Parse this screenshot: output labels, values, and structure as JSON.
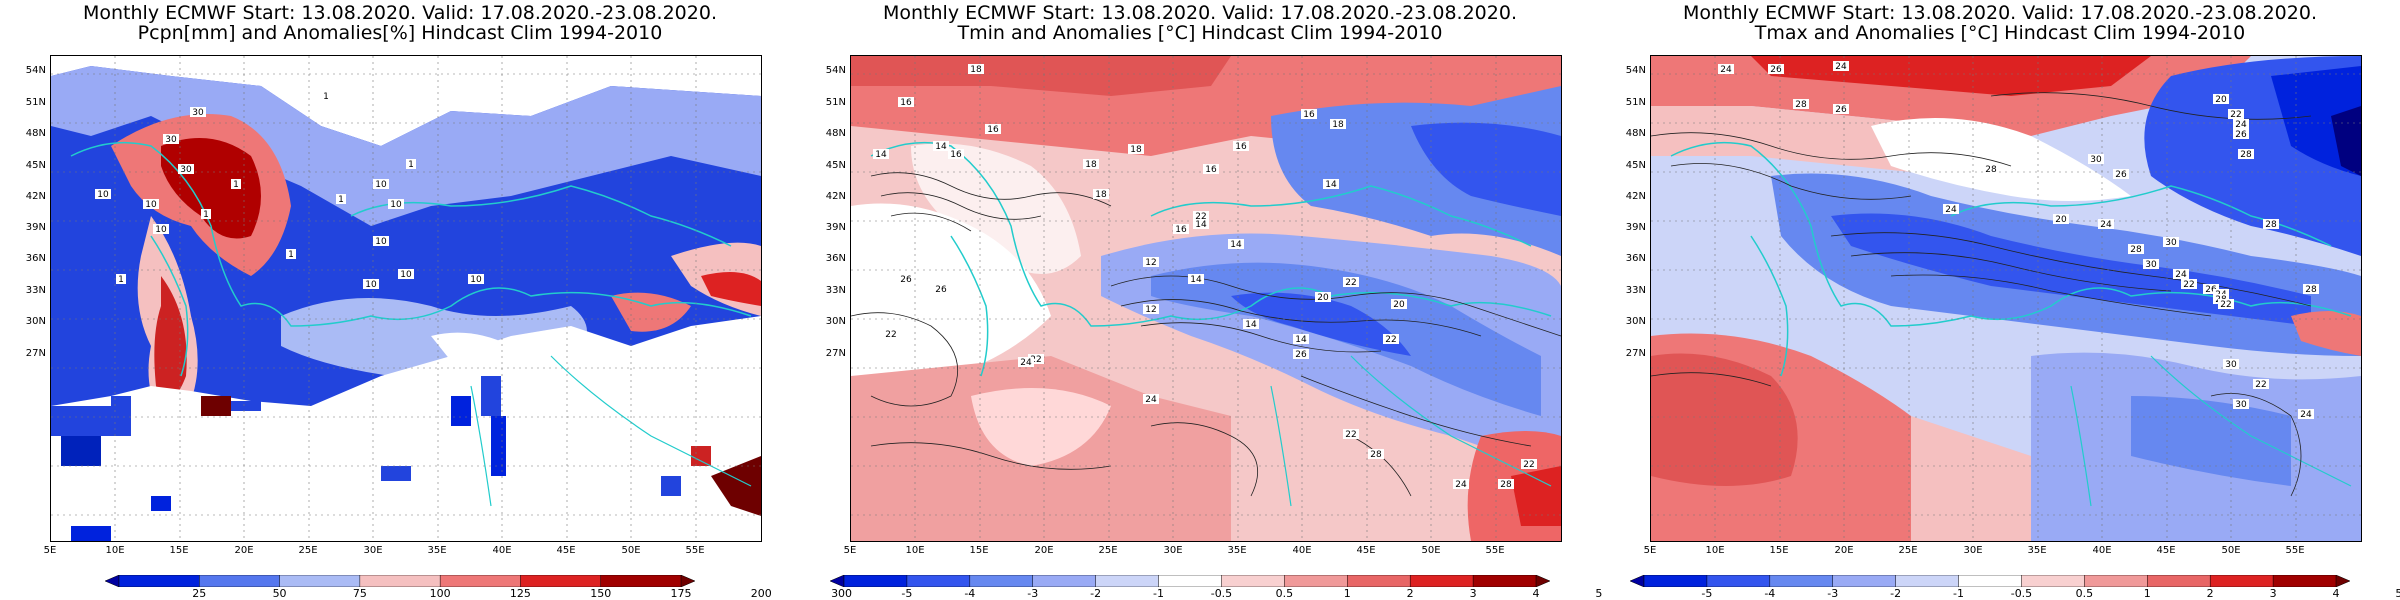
{
  "panels": [
    {
      "title_line1": "Monthly ECMWF Start: 13.08.2020. Valid: 17.08.2020.-23.08.2020.",
      "title_line2": "Pcpn[mm] and Anomalies[%] Hindcast Clim 1994-2010",
      "colorbar_labels": [
        "25",
        "50",
        "75",
        "100",
        "125",
        "150",
        "175",
        "200",
        "300"
      ],
      "colorbar_colors": [
        "#0000a0",
        "#0022dd",
        "#5577ee",
        "#aabbf5",
        "#f5c0c0",
        "#ee7777",
        "#dd2222",
        "#a00000",
        "#6e0000"
      ],
      "contour_labels": [
        "30",
        "30",
        "30",
        "10",
        "10",
        "10",
        "1",
        "1",
        "1",
        "10",
        "10",
        "1",
        "1",
        "10",
        "1",
        "10",
        "1",
        "10",
        "10"
      ]
    },
    {
      "title_line1": "Monthly ECMWF Start: 13.08.2020. Valid: 17.08.2020.-23.08.2020.",
      "title_line2": "Tmin and Anomalies [°C] Hindcast Clim 1994-2010",
      "colorbar_labels": [
        "-5",
        "-4",
        "-3",
        "-2",
        "-1",
        "-0.5",
        "0.5",
        "1",
        "2",
        "3",
        "4",
        "5"
      ],
      "colorbar_colors": [
        "#0000a0",
        "#0022dd",
        "#3355ee",
        "#6688f0",
        "#99aaf5",
        "#ccd5f8",
        "#ffffff",
        "#f8d0d0",
        "#f09999",
        "#e86666",
        "#dd2222",
        "#a00000",
        "#6e0000"
      ],
      "contour_labels": [
        "18",
        "16",
        "16",
        "14",
        "14",
        "16",
        "18",
        "18",
        "16",
        "16",
        "22",
        "18",
        "14",
        "12",
        "14",
        "12",
        "14",
        "14",
        "22",
        "26",
        "26",
        "22",
        "22",
        "24",
        "24",
        "26",
        "28",
        "20",
        "22",
        "28",
        "22",
        "16",
        "18",
        "20",
        "22",
        "24",
        "14",
        "16",
        "14"
      ]
    },
    {
      "title_line1": "Monthly ECMWF Start: 13.08.2020. Valid: 17.08.2020.-23.08.2020.",
      "title_line2": "Tmax and Anomalies [°C] Hindcast Clim 1994-2010",
      "colorbar_labels": [
        "-5",
        "-4",
        "-3",
        "-2",
        "-1",
        "-0.5",
        "0.5",
        "1",
        "2",
        "3",
        "4",
        "5"
      ],
      "colorbar_colors": [
        "#0000a0",
        "#0022dd",
        "#3355ee",
        "#6688f0",
        "#99aaf5",
        "#ccd5f8",
        "#ffffff",
        "#f8d0d0",
        "#f09999",
        "#e86666",
        "#dd2222",
        "#a00000",
        "#6e0000"
      ],
      "contour_labels": [
        "24",
        "26",
        "24",
        "28",
        "26",
        "20",
        "22",
        "24",
        "26",
        "28",
        "30",
        "26",
        "24",
        "28",
        "20",
        "24",
        "28",
        "30",
        "30",
        "24",
        "22",
        "26",
        "24",
        "28",
        "22",
        "28",
        "30",
        "30",
        "24",
        "22",
        "28"
      ]
    }
  ],
  "y_axis_labels": [
    "54N",
    "51N",
    "48N",
    "45N",
    "42N",
    "39N",
    "36N",
    "33N",
    "30N",
    "27N"
  ],
  "x_axis_labels": [
    "5E",
    "10E",
    "15E",
    "20E",
    "25E",
    "30E",
    "35E",
    "40E",
    "45E",
    "50E",
    "55E"
  ],
  "icons": {
    "colorbar_arrow_left": "triangle-left",
    "colorbar_arrow_right": "triangle-right"
  }
}
